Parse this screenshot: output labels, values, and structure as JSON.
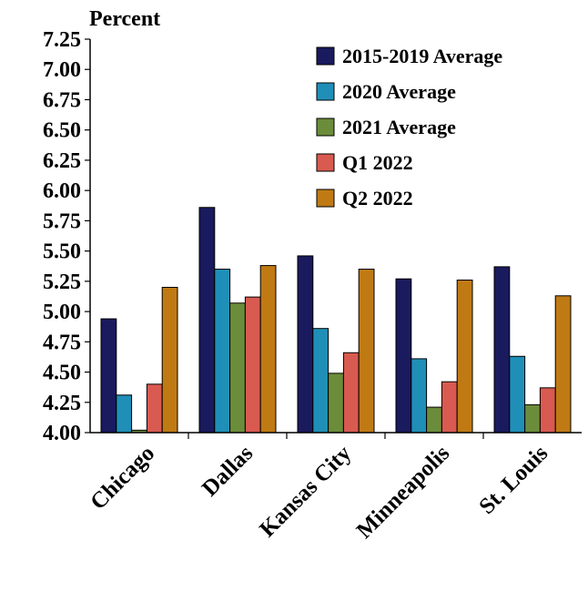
{
  "chart_data": {
    "type": "bar",
    "title": "",
    "xlabel": "",
    "ylabel": "Percent",
    "ylim": [
      4.0,
      7.25
    ],
    "yticks": [
      "4.00",
      "4.25",
      "4.50",
      "4.75",
      "5.00",
      "5.25",
      "5.50",
      "5.75",
      "6.00",
      "6.25",
      "6.50",
      "6.75",
      "7.00",
      "7.25"
    ],
    "categories": [
      "Chicago",
      "Dallas",
      "Kansas City",
      "Minneapolis",
      "St. Louis"
    ],
    "series": [
      {
        "name": "2015-2019 Average",
        "color": "#1a1a5e",
        "values": [
          4.94,
          5.86,
          5.46,
          5.27,
          5.37
        ]
      },
      {
        "name": "2020 Average",
        "color": "#1f8fb8",
        "values": [
          4.31,
          5.35,
          4.86,
          4.61,
          4.63
        ]
      },
      {
        "name": "2021 Average",
        "color": "#6b8c3a",
        "values": [
          4.02,
          5.07,
          4.49,
          4.21,
          4.23
        ]
      },
      {
        "name": "Q1 2022",
        "color": "#d95a50",
        "values": [
          4.4,
          5.12,
          4.66,
          4.42,
          4.37
        ]
      },
      {
        "name": "Q2 2022",
        "color": "#c07a14",
        "values": [
          5.2,
          5.38,
          5.35,
          5.26,
          5.13
        ]
      }
    ],
    "grid": false,
    "legend_position": "top-right"
  }
}
